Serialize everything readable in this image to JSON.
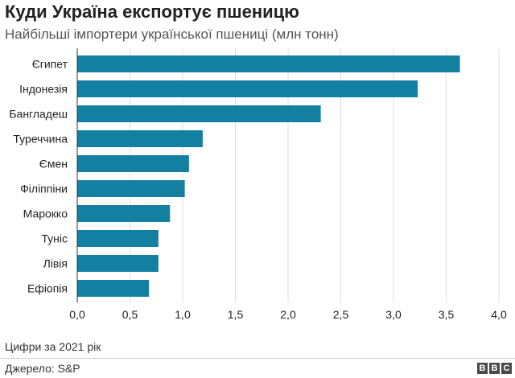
{
  "header": {
    "title": "Куди Україна експортує пшеницю",
    "subtitle": "Найбільші імпортери української пшениці (млн тонн)"
  },
  "footer": {
    "note": "Цифри за 2021 рік",
    "source": "Джерело: S&P",
    "logo_letters": [
      "B",
      "B",
      "C"
    ]
  },
  "chart_data": {
    "type": "bar",
    "orientation": "horizontal",
    "title": "Куди Україна експортує пшеницю",
    "subtitle": "Найбільші імпортери української пшениці (млн тонн)",
    "categories": [
      "Єгипет",
      "Індонезія",
      "Бангладеш",
      "Туреччина",
      "Ємен",
      "Філіппіни",
      "Марокко",
      "Туніс",
      "Лівія",
      "Ефіопія"
    ],
    "values": [
      3.63,
      3.23,
      2.31,
      1.19,
      1.06,
      1.02,
      0.88,
      0.77,
      0.77,
      0.68
    ],
    "xlim": [
      0,
      4
    ],
    "xticks": [
      "0,0",
      "0,5",
      "1,0",
      "1,5",
      "2,0",
      "2,5",
      "3,0",
      "3,5",
      "4,0"
    ],
    "grid": true,
    "bar_color": "#1380A1",
    "grid_color": "#dddddd"
  }
}
